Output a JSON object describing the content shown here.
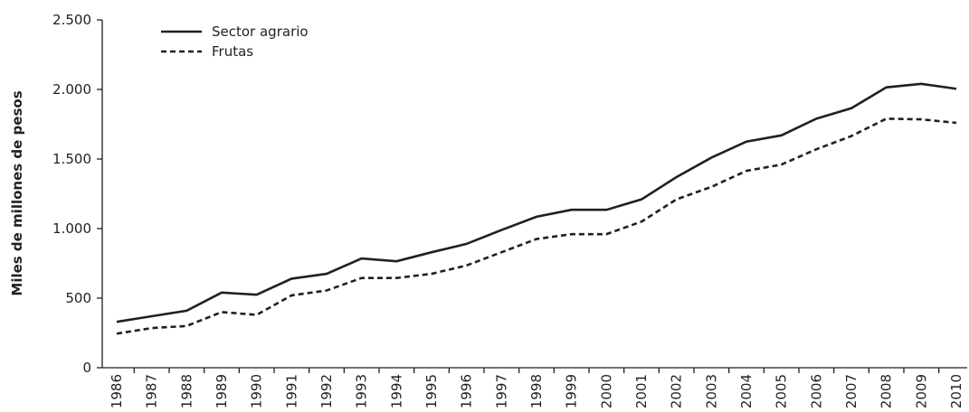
{
  "chart_data": {
    "type": "line",
    "y_label": "Miles de millones de pesos",
    "categories": [
      "1986",
      "1987",
      "1988",
      "1989",
      "1990",
      "1991",
      "1992",
      "1993",
      "1994",
      "1995",
      "1996",
      "1997",
      "1998",
      "1999",
      "2000",
      "2001",
      "2002",
      "2003",
      "2004",
      "2005",
      "2006",
      "2007",
      "2008",
      "2009",
      "2010"
    ],
    "series": [
      {
        "name": "Sector agrario",
        "color": "#231f20",
        "dash": "solid",
        "values": [
          330,
          370,
          410,
          540,
          525,
          640,
          675,
          785,
          765,
          830,
          890,
          990,
          1085,
          1135,
          1135,
          1210,
          1370,
          1510,
          1625,
          1670,
          1790,
          1865,
          2015,
          2040,
          2005
        ]
      },
      {
        "name": "Frutas",
        "color": "#231f20",
        "dash": "dashed",
        "values": [
          245,
          285,
          300,
          400,
          380,
          520,
          555,
          645,
          645,
          675,
          735,
          830,
          925,
          960,
          960,
          1050,
          1210,
          1300,
          1415,
          1460,
          1570,
          1665,
          1790,
          1785,
          1760
        ]
      }
    ],
    "ylim": [
      0,
      2500
    ],
    "yticks": [
      0,
      500,
      {
        "value": 1000,
        "label": "1.000"
      },
      {
        "value": 1500,
        "label": "1.500"
      },
      {
        "value": 2000,
        "label": "2.000"
      },
      {
        "value": 2500,
        "label": "2.500"
      }
    ],
    "grid": false,
    "legend": "upper left"
  }
}
